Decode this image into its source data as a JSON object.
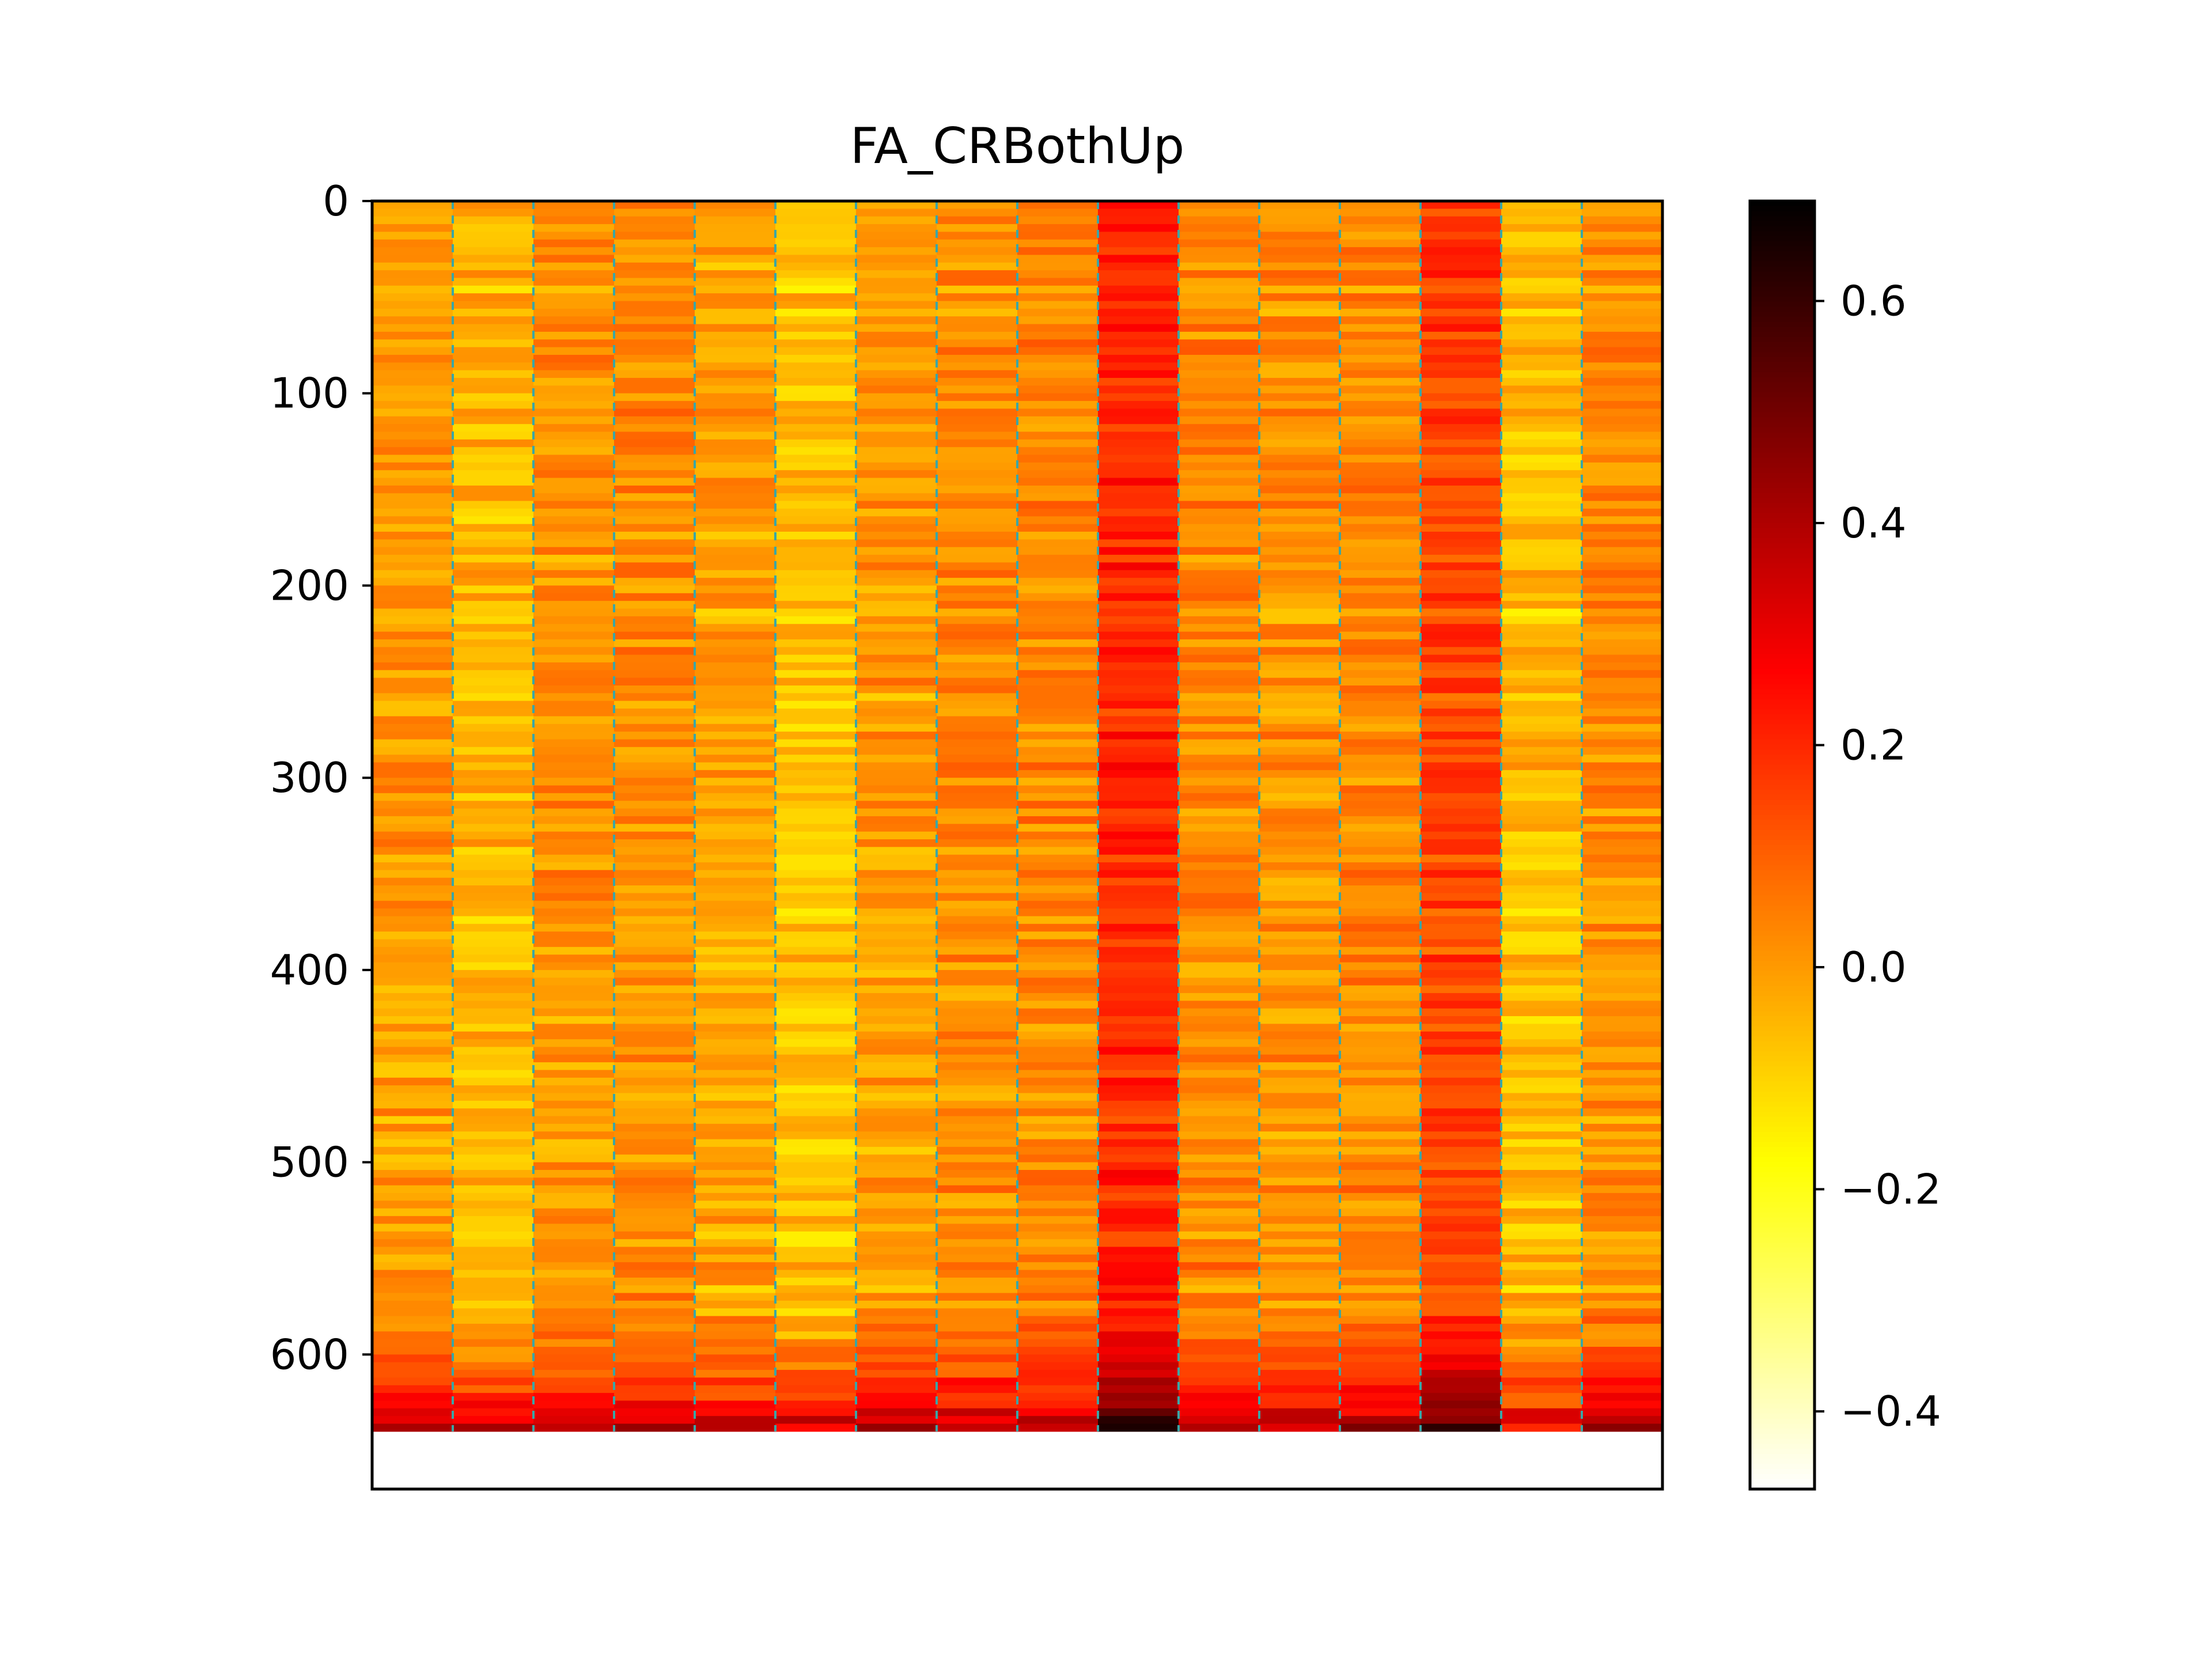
{
  "chart_data": {
    "type": "heatmap",
    "title": "FA_CRBothUp",
    "xlabel": "",
    "ylabel": "",
    "colormap": "hot_r",
    "n_columns": 16,
    "n_rows": 640,
    "y_axis": {
      "inverted": true,
      "ylim": [
        670,
        0
      ],
      "ticks": [
        0,
        100,
        200,
        300,
        400,
        500,
        600
      ],
      "tick_labels": [
        "0",
        "100",
        "200",
        "300",
        "400",
        "500",
        "600"
      ]
    },
    "x_axis": {
      "ticks": [],
      "tick_labels": []
    },
    "column_mean_values": [
      0.0,
      -0.05,
      0.01,
      0.02,
      -0.02,
      -0.07,
      0.0,
      0.02,
      0.03,
      0.2,
      0.03,
      0.01,
      0.03,
      0.15,
      -0.06,
      0.02
    ],
    "column_separators": {
      "positions": [
        1,
        2,
        3,
        4,
        5,
        6,
        7,
        8,
        9,
        10,
        11,
        12,
        13,
        14,
        15
      ],
      "style": "dashed",
      "color": "#3aa6a6"
    },
    "bottom_rows_trend": "values rise to about 0.45–0.65 in the last ~40 rows (rows 600–640)",
    "colorbar": {
      "range": [
        -0.47,
        0.69
      ],
      "ticks": [
        -0.4,
        -0.2,
        0.0,
        0.2,
        0.4,
        0.6
      ],
      "tick_labels": [
        "−0.4",
        "−0.2",
        "0.0",
        "0.2",
        "0.4",
        "0.6"
      ]
    },
    "grid": false,
    "legend": "none"
  }
}
